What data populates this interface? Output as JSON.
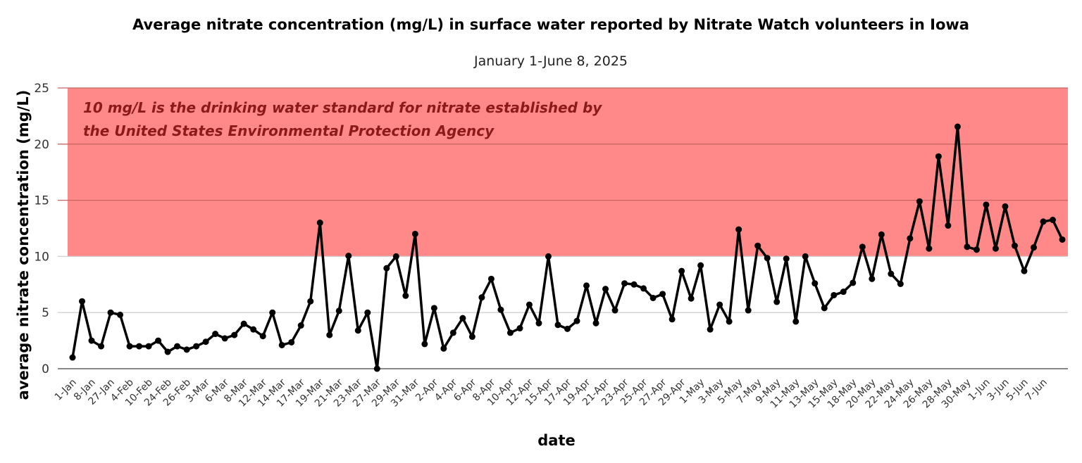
{
  "chart_data": {
    "type": "line",
    "title": "Average nitrate concentration (mg/L) in surface water reported by Nitrate Watch volunteers in Iowa",
    "subtitle": "January 1-June 8, 2025",
    "xlabel": "date",
    "ylabel": "average nitrate concentration (mg/L)",
    "ylim": [
      0,
      25
    ],
    "yticks": [
      0,
      5,
      10,
      15,
      20,
      25
    ],
    "grid": true,
    "legend": "none",
    "x_tick_labels_every": 2,
    "x_tick_labels": [
      "1-Jan",
      "8-Jan",
      "27-Jan",
      "4-Feb",
      "10-Feb",
      "24-Feb",
      "26-Feb",
      "3-Mar",
      "6-Mar",
      "8-Mar",
      "12-Mar",
      "14-Mar",
      "17-Mar",
      "19-Mar",
      "21-Mar",
      "23-Mar",
      "27-Mar",
      "29-Mar",
      "31-Mar",
      "2-Apr",
      "4-Apr",
      "6-Apr",
      "8-Apr",
      "10-Apr",
      "12-Apr",
      "15-Apr",
      "17-Apr",
      "19-Apr",
      "21-Apr",
      "23-Apr",
      "25-Apr",
      "27-Apr",
      "29-Apr",
      "1-May",
      "3-May",
      "5-May",
      "7-May",
      "9-May",
      "11-May",
      "13-May",
      "15-May",
      "18-May",
      "20-May",
      "22-May",
      "24-May",
      "26-May",
      "28-May",
      "30-May",
      "1-Jun",
      "3-Jun",
      "5-Jun",
      "7-Jun"
    ],
    "values": [
      1.0,
      6.0,
      2.5,
      2.0,
      5.0,
      4.8,
      2.0,
      2.0,
      2.0,
      2.5,
      1.5,
      2.0,
      1.7,
      2.0,
      2.4,
      3.1,
      2.7,
      3.0,
      4.0,
      3.5,
      2.9,
      5.0,
      2.1,
      2.35,
      3.85,
      6.0,
      13.0,
      3.0,
      5.15,
      10.05,
      3.4,
      5.0,
      0.0,
      8.95,
      10.0,
      6.5,
      12.0,
      2.2,
      5.4,
      1.8,
      3.2,
      4.5,
      2.85,
      6.35,
      8.0,
      5.25,
      3.2,
      3.6,
      5.7,
      4.05,
      10.0,
      3.9,
      3.55,
      4.25,
      7.4,
      4.05,
      7.1,
      5.2,
      7.6,
      7.5,
      7.15,
      6.3,
      6.65,
      4.4,
      8.7,
      6.25,
      9.2,
      3.5,
      5.7,
      4.2,
      12.4,
      5.2,
      10.95,
      9.85,
      5.95,
      9.8,
      4.2,
      10.0,
      7.6,
      5.4,
      6.55,
      6.85,
      7.65,
      10.85,
      8.0,
      11.95,
      8.45,
      7.55,
      11.6,
      14.9,
      10.7,
      18.9,
      12.75,
      21.55,
      10.85,
      10.6,
      14.6,
      10.7,
      14.45,
      10.95,
      8.7,
      10.8,
      13.1,
      13.25,
      11.5
    ],
    "line_color": "#000000",
    "threshold_band": {
      "from": 10,
      "to": 25,
      "color": "#ff8888",
      "annotation_lines": [
        "10 mg/L is the drinking water standard for nitrate established by",
        "the United States Environmental Protection Agency"
      ],
      "annotation_color": "#8b1a1a"
    }
  }
}
